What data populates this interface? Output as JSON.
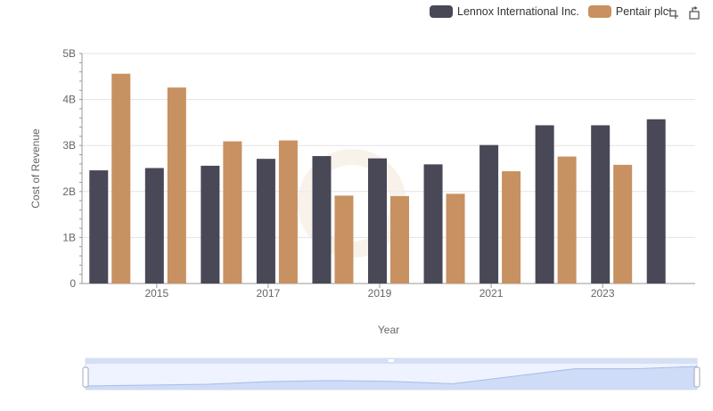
{
  "legend": {
    "items": [
      {
        "label": "Lennox International Inc.",
        "color": "#484856"
      },
      {
        "label": "Pentair plc",
        "color": "#c79161"
      }
    ]
  },
  "toolbar": {
    "icons": [
      "zoom-select-icon",
      "zoom-reset-icon"
    ]
  },
  "chart_data": {
    "type": "bar",
    "title": "",
    "xlabel": "Year",
    "ylabel": "Cost of Revenue",
    "categories": [
      2014,
      2015,
      2016,
      2017,
      2018,
      2019,
      2020,
      2021,
      2022,
      2023,
      2024
    ],
    "x_tick_labels": [
      "2015",
      "2017",
      "2019",
      "2021",
      "2023"
    ],
    "y_tick_labels": [
      "0",
      "1B",
      "2B",
      "3B",
      "4B",
      "5B"
    ],
    "ylim": [
      0,
      5000000000
    ],
    "grid": true,
    "legend_position": "top-right",
    "series": [
      {
        "name": "Lennox International Inc.",
        "color": "#484856",
        "values": [
          2460000000,
          2510000000,
          2560000000,
          2710000000,
          2770000000,
          2720000000,
          2590000000,
          3010000000,
          3440000000,
          3440000000,
          3570000000
        ]
      },
      {
        "name": "Pentair plc",
        "color": "#c79161",
        "values": [
          4560000000,
          4260000000,
          3090000000,
          3110000000,
          1910000000,
          1900000000,
          1950000000,
          2440000000,
          2760000000,
          2580000000,
          null
        ]
      }
    ],
    "overview_navigator": true
  }
}
